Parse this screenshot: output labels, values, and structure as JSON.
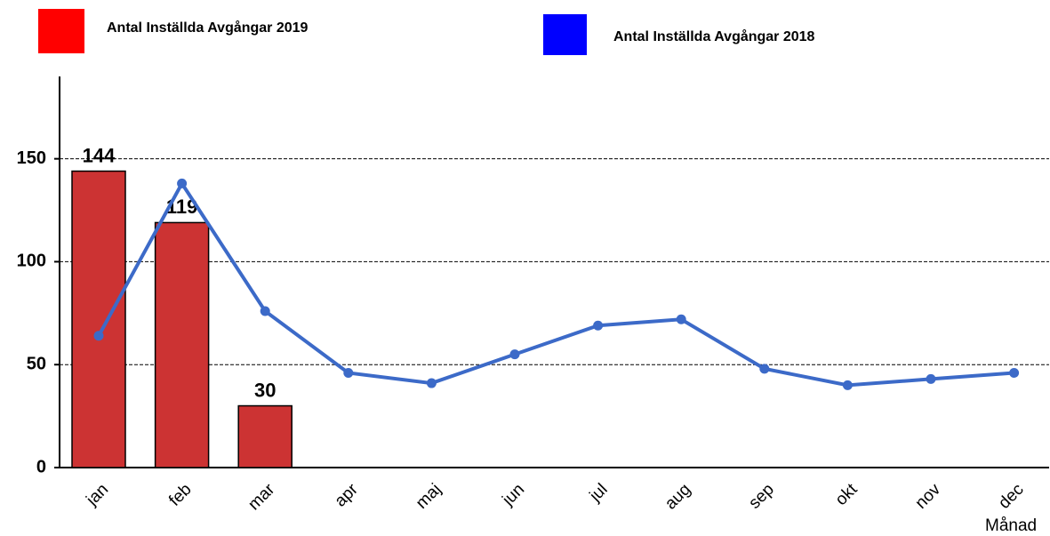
{
  "chart_data": {
    "type": "bar-line",
    "categories": [
      "jan",
      "feb",
      "mar",
      "apr",
      "maj",
      "jun",
      "jul",
      "aug",
      "sep",
      "okt",
      "nov",
      "dec"
    ],
    "series": [
      {
        "name": "Antal Inställda Avgångar 2019",
        "type": "bar",
        "color": "#cc3333",
        "legend_color": "#ff0000",
        "values": [
          144,
          119,
          30,
          null,
          null,
          null,
          null,
          null,
          null,
          null,
          null,
          null
        ]
      },
      {
        "name": "Antal Inställda Avgångar 2018",
        "type": "line",
        "color": "#3c6ac8",
        "legend_color": "#0000ff",
        "values": [
          64,
          138,
          76,
          46,
          41,
          55,
          69,
          72,
          48,
          40,
          43,
          46
        ]
      }
    ],
    "x_label": "Månad",
    "ylim": [
      0,
      190
    ],
    "yticks": [
      0,
      50,
      100,
      150
    ],
    "grid": true
  }
}
